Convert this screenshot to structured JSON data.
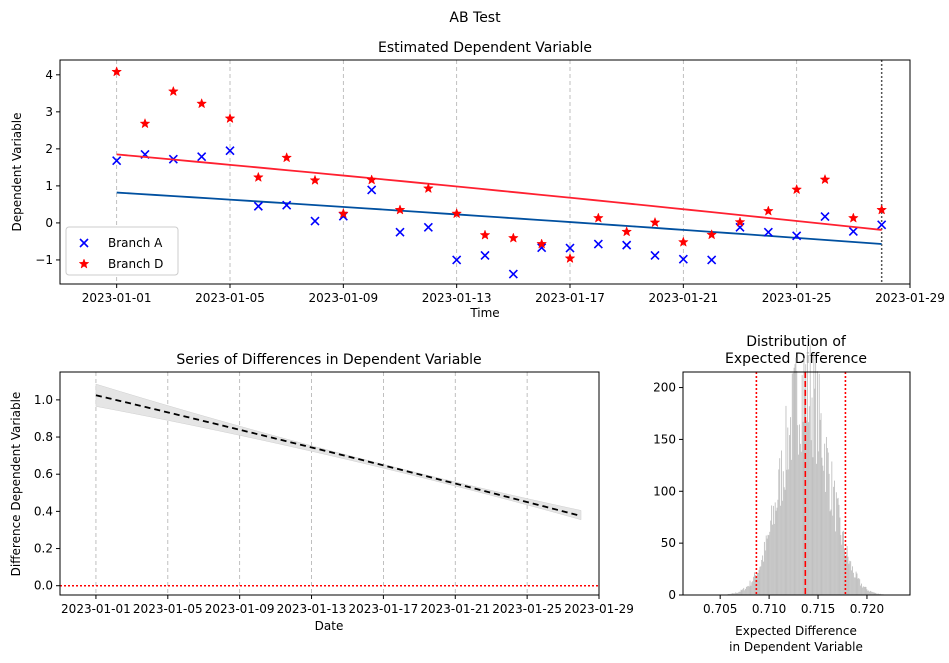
{
  "suptitle": "AB Test",
  "chart_data": [
    {
      "id": "top",
      "type": "scatter",
      "title": "Estimated Dependent Variable",
      "xlabel": "Time",
      "ylabel": "Dependent Variable",
      "x_start": "2023-01-01",
      "x": [
        "2023-01-01",
        "2023-01-02",
        "2023-01-03",
        "2023-01-04",
        "2023-01-05",
        "2023-01-06",
        "2023-01-07",
        "2023-01-08",
        "2023-01-09",
        "2023-01-10",
        "2023-01-11",
        "2023-01-12",
        "2023-01-13",
        "2023-01-14",
        "2023-01-15",
        "2023-01-16",
        "2023-01-17",
        "2023-01-18",
        "2023-01-19",
        "2023-01-20",
        "2023-01-21",
        "2023-01-22",
        "2023-01-23",
        "2023-01-24",
        "2023-01-25",
        "2023-01-26",
        "2023-01-27",
        "2023-01-28"
      ],
      "series": [
        {
          "name": "Branch A",
          "marker": "x",
          "color": "#0000ff",
          "values": [
            1.68,
            1.85,
            1.72,
            1.79,
            1.95,
            0.45,
            0.48,
            0.05,
            0.18,
            0.89,
            -0.25,
            -0.12,
            -1.0,
            -0.88,
            -1.38,
            -0.67,
            -0.68,
            -0.57,
            -0.6,
            -0.88,
            -0.98,
            -1.0,
            -0.12,
            -0.25,
            -0.35,
            0.17,
            -0.23,
            -0.05
          ],
          "fit": {
            "color": "#0050a0",
            "start": 0.82,
            "end": -0.57
          }
        },
        {
          "name": "Branch D",
          "marker": "star",
          "color": "#ff0000",
          "values": [
            4.08,
            2.68,
            3.55,
            3.22,
            2.82,
            1.23,
            1.76,
            1.15,
            0.25,
            1.16,
            0.35,
            0.93,
            0.25,
            -0.33,
            -0.41,
            -0.57,
            -0.96,
            0.13,
            -0.24,
            0.01,
            -0.52,
            -0.32,
            0.02,
            0.32,
            0.9,
            1.17,
            0.13,
            0.35
          ],
          "fit": {
            "color": "#ff2030",
            "start": 1.85,
            "end": -0.19
          }
        }
      ],
      "xticks": [
        "2023-01-01",
        "2023-01-05",
        "2023-01-09",
        "2023-01-13",
        "2023-01-17",
        "2023-01-21",
        "2023-01-25",
        "2023-01-29"
      ],
      "yticks": [
        -1,
        0,
        1,
        2,
        3,
        4
      ],
      "ylim": [
        -1.65,
        4.4
      ],
      "xlim": [
        "2022-12-30",
        "2023-01-29"
      ],
      "vline": "2023-01-28",
      "grid": "x dashed",
      "legend": "lower-left"
    },
    {
      "id": "bottom-left",
      "type": "line",
      "title": "Series of Differences in Dependent Variable",
      "xlabel": "Date",
      "ylabel": "Difference Dependent Variable",
      "x_start": "2023-01-01",
      "x_end": "2023-01-28",
      "mean": {
        "start": 1.025,
        "end": 0.375,
        "color": "#000000",
        "style": "dashed"
      },
      "band": {
        "lower_start": 0.965,
        "lower_end": 0.355,
        "upper_start": 1.085,
        "upper_end": 0.405,
        "color": "#e5e5e5"
      },
      "hline": {
        "y": 0.0,
        "color": "#ff0000",
        "style": "dotted"
      },
      "xticks": [
        "2023-01-01",
        "2023-01-05",
        "2023-01-09",
        "2023-01-13",
        "2023-01-17",
        "2023-01-21",
        "2023-01-25",
        "2023-01-29"
      ],
      "yticks": [
        0.0,
        0.2,
        0.4,
        0.6,
        0.8,
        1.0
      ],
      "ylim": [
        -0.05,
        1.15
      ],
      "xlim": [
        "2022-12-30",
        "2023-01-29"
      ],
      "grid": "x dashed"
    },
    {
      "id": "bottom-right",
      "type": "histogram",
      "title_lines": [
        "Distribution of",
        "Expected Difference"
      ],
      "xlabel_lines": [
        "Expected Difference",
        "in Dependent Variable"
      ],
      "mean": 0.7137,
      "std": 0.00235,
      "peak": 200,
      "color": "#c0c0c0",
      "vlines": [
        {
          "x": 0.7137,
          "color": "#ff0000",
          "style": "dashed"
        },
        {
          "x": 0.7087,
          "color": "#ff0000",
          "style": "dotted"
        },
        {
          "x": 0.7178,
          "color": "#ff0000",
          "style": "dotted"
        }
      ],
      "xticks": [
        0.705,
        0.71,
        0.715,
        0.72
      ],
      "yticks": [
        0,
        50,
        100,
        150,
        200
      ],
      "xlim": [
        0.7012,
        0.7244
      ],
      "ylim": [
        0,
        215
      ]
    }
  ]
}
